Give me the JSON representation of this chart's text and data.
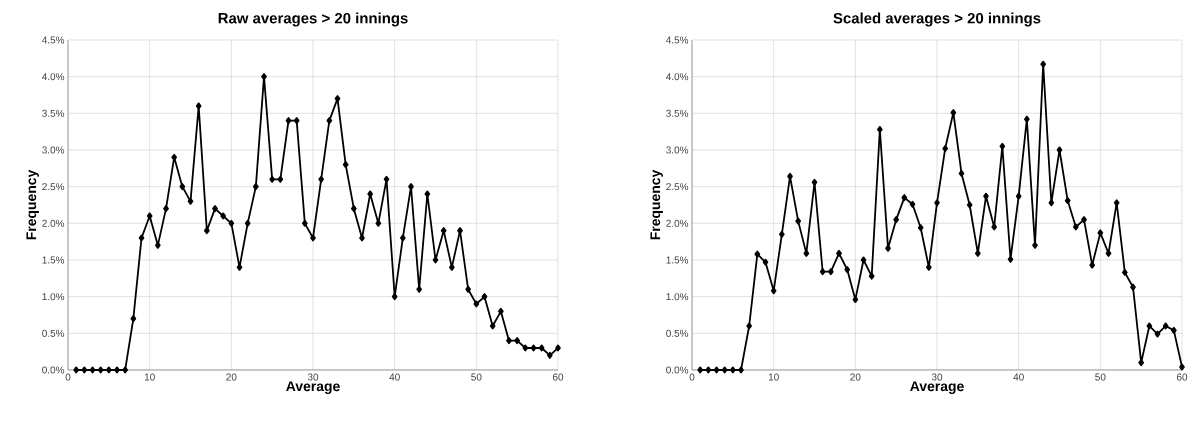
{
  "chart_data": [
    {
      "type": "line",
      "title": "Raw averages > 20 innings",
      "xlabel": "Average",
      "ylabel": "Frequency",
      "marker": "diamond",
      "grid": true,
      "line_style": "solid",
      "xlim": [
        0,
        60
      ],
      "xticks": [
        0,
        10,
        20,
        30,
        40,
        50,
        60
      ],
      "ylim": [
        0,
        4.5
      ],
      "yticks": [
        {
          "value": 0,
          "label": "0.0%"
        },
        {
          "value": 0.5,
          "label": "0.5%"
        },
        {
          "value": 1,
          "label": "1.0%"
        },
        {
          "value": 1.5,
          "label": "1.5%"
        },
        {
          "value": 2,
          "label": "2.0%"
        },
        {
          "value": 2.5,
          "label": "2.5%"
        },
        {
          "value": 3,
          "label": "3.0%"
        },
        {
          "value": 3.5,
          "label": "3.5%"
        },
        {
          "value": 4,
          "label": "4.0%"
        },
        {
          "value": 4.5,
          "label": "4.5%"
        }
      ],
      "x": [
        1,
        2,
        3,
        4,
        5,
        6,
        7,
        8,
        9,
        10,
        11,
        12,
        13,
        14,
        15,
        16,
        17,
        18,
        19,
        20,
        21,
        22,
        23,
        24,
        25,
        26,
        27,
        28,
        29,
        30,
        31,
        32,
        33,
        34,
        35,
        36,
        37,
        38,
        39,
        40,
        41,
        42,
        43,
        44,
        45,
        46,
        47,
        48,
        49,
        50,
        51,
        52,
        53,
        54,
        55,
        56,
        57,
        58,
        59,
        60
      ],
      "series": [
        {
          "color": "#000000",
          "values": [
            0,
            0,
            0,
            0,
            0,
            0,
            0,
            0.7,
            1.8,
            2.1,
            1.7,
            2.2,
            2.9,
            2.5,
            2.3,
            3.6,
            1.9,
            2.2,
            2.1,
            2.0,
            1.4,
            2.0,
            2.5,
            4.0,
            2.6,
            2.6,
            3.4,
            3.4,
            2.0,
            1.8,
            2.6,
            3.4,
            3.7,
            2.8,
            2.2,
            1.8,
            2.4,
            2.0,
            2.6,
            1.0,
            1.8,
            2.5,
            1.1,
            2.4,
            1.5,
            1.9,
            1.4,
            1.9,
            1.1,
            0.9,
            1.0,
            0.6,
            0.8,
            0.4,
            0.4,
            0.3,
            0.3,
            0.3,
            0.2,
            0.3
          ]
        }
      ]
    },
    {
      "type": "line",
      "title": "Scaled averages > 20 innings",
      "xlabel": "Average",
      "ylabel": "Frequency",
      "marker": "diamond",
      "grid": true,
      "line_style": "solid",
      "xlim": [
        0,
        60
      ],
      "xticks": [
        0,
        10,
        20,
        30,
        40,
        50,
        60
      ],
      "ylim": [
        0,
        4.5
      ],
      "yticks": [
        {
          "value": 0,
          "label": "0.0%"
        },
        {
          "value": 0.5,
          "label": "0.5%"
        },
        {
          "value": 1,
          "label": "1.0%"
        },
        {
          "value": 1.5,
          "label": "1.5%"
        },
        {
          "value": 2,
          "label": "2.0%"
        },
        {
          "value": 2.5,
          "label": "2.5%"
        },
        {
          "value": 3,
          "label": "3.0%"
        },
        {
          "value": 3.5,
          "label": "3.5%"
        },
        {
          "value": 4,
          "label": "4.0%"
        },
        {
          "value": 4.5,
          "label": "4.5%"
        }
      ],
      "x": [
        1,
        2,
        3,
        4,
        5,
        6,
        7,
        8,
        9,
        10,
        11,
        12,
        13,
        14,
        15,
        16,
        17,
        18,
        19,
        20,
        21,
        22,
        23,
        24,
        25,
        26,
        27,
        28,
        29,
        30,
        31,
        32,
        33,
        34,
        35,
        36,
        37,
        38,
        39,
        40,
        41,
        42,
        43,
        44,
        45,
        46,
        47,
        48,
        49,
        50,
        51,
        52,
        53,
        54,
        55,
        56,
        57,
        58,
        59,
        60
      ],
      "series": [
        {
          "color": "#000000",
          "values": [
            0,
            0,
            0,
            0,
            0,
            0,
            0.6,
            1.58,
            1.47,
            1.08,
            1.85,
            2.64,
            2.03,
            1.59,
            2.56,
            1.34,
            1.34,
            1.59,
            1.37,
            0.96,
            1.5,
            1.28,
            3.28,
            1.66,
            2.05,
            2.35,
            2.26,
            1.94,
            1.4,
            2.28,
            3.02,
            3.51,
            2.68,
            2.25,
            1.59,
            2.37,
            1.95,
            3.05,
            1.51,
            2.37,
            3.42,
            1.7,
            4.17,
            2.28,
            3.0,
            2.31,
            1.95,
            2.05,
            1.43,
            1.87,
            1.59,
            2.28,
            1.33,
            1.13,
            0.1,
            0.6,
            0.49,
            0.6,
            0.54,
            0.04
          ]
        }
      ]
    }
  ]
}
